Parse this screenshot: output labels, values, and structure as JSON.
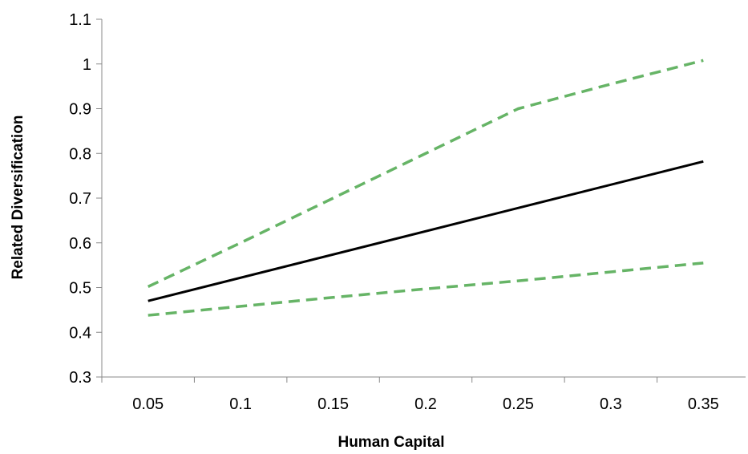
{
  "chart_data": {
    "type": "line",
    "title": "",
    "xlabel": "Human Capital",
    "ylabel": "Related Diversification",
    "xlim": [
      0.025,
      0.375
    ],
    "ylim": [
      0.3,
      1.1
    ],
    "x_ticks": [
      0.05,
      0.1,
      0.15,
      0.2,
      0.25,
      0.3,
      0.35
    ],
    "x_tick_labels": [
      "0.05",
      "0.1",
      "0.15",
      "0.2",
      "0.25",
      "0.3",
      "0.35"
    ],
    "y_ticks": [
      0.3,
      0.4,
      0.5,
      0.6,
      0.7,
      0.8,
      0.9,
      1.0,
      1.1
    ],
    "y_tick_labels": [
      "0.3",
      "0.4",
      "0.5",
      "0.6",
      "0.7",
      "0.8",
      "0.9",
      "1",
      "1.1"
    ],
    "grid": false,
    "legend": "none",
    "series": [
      {
        "color": "#66b466",
        "dash": true,
        "x": [
          0.05,
          0.1,
          0.15,
          0.2,
          0.25,
          0.3,
          0.35
        ],
        "values": [
          0.502,
          0.6,
          0.7,
          0.8,
          0.9,
          0.955,
          1.008
        ]
      },
      {
        "color": "#000000",
        "dash": false,
        "x": [
          0.05,
          0.35
        ],
        "values": [
          0.47,
          0.782
        ]
      },
      {
        "color": "#66b466",
        "dash": true,
        "x": [
          0.05,
          0.1,
          0.15,
          0.2,
          0.25,
          0.3,
          0.35
        ],
        "values": [
          0.438,
          0.458,
          0.478,
          0.497,
          0.515,
          0.535,
          0.555
        ]
      }
    ]
  }
}
